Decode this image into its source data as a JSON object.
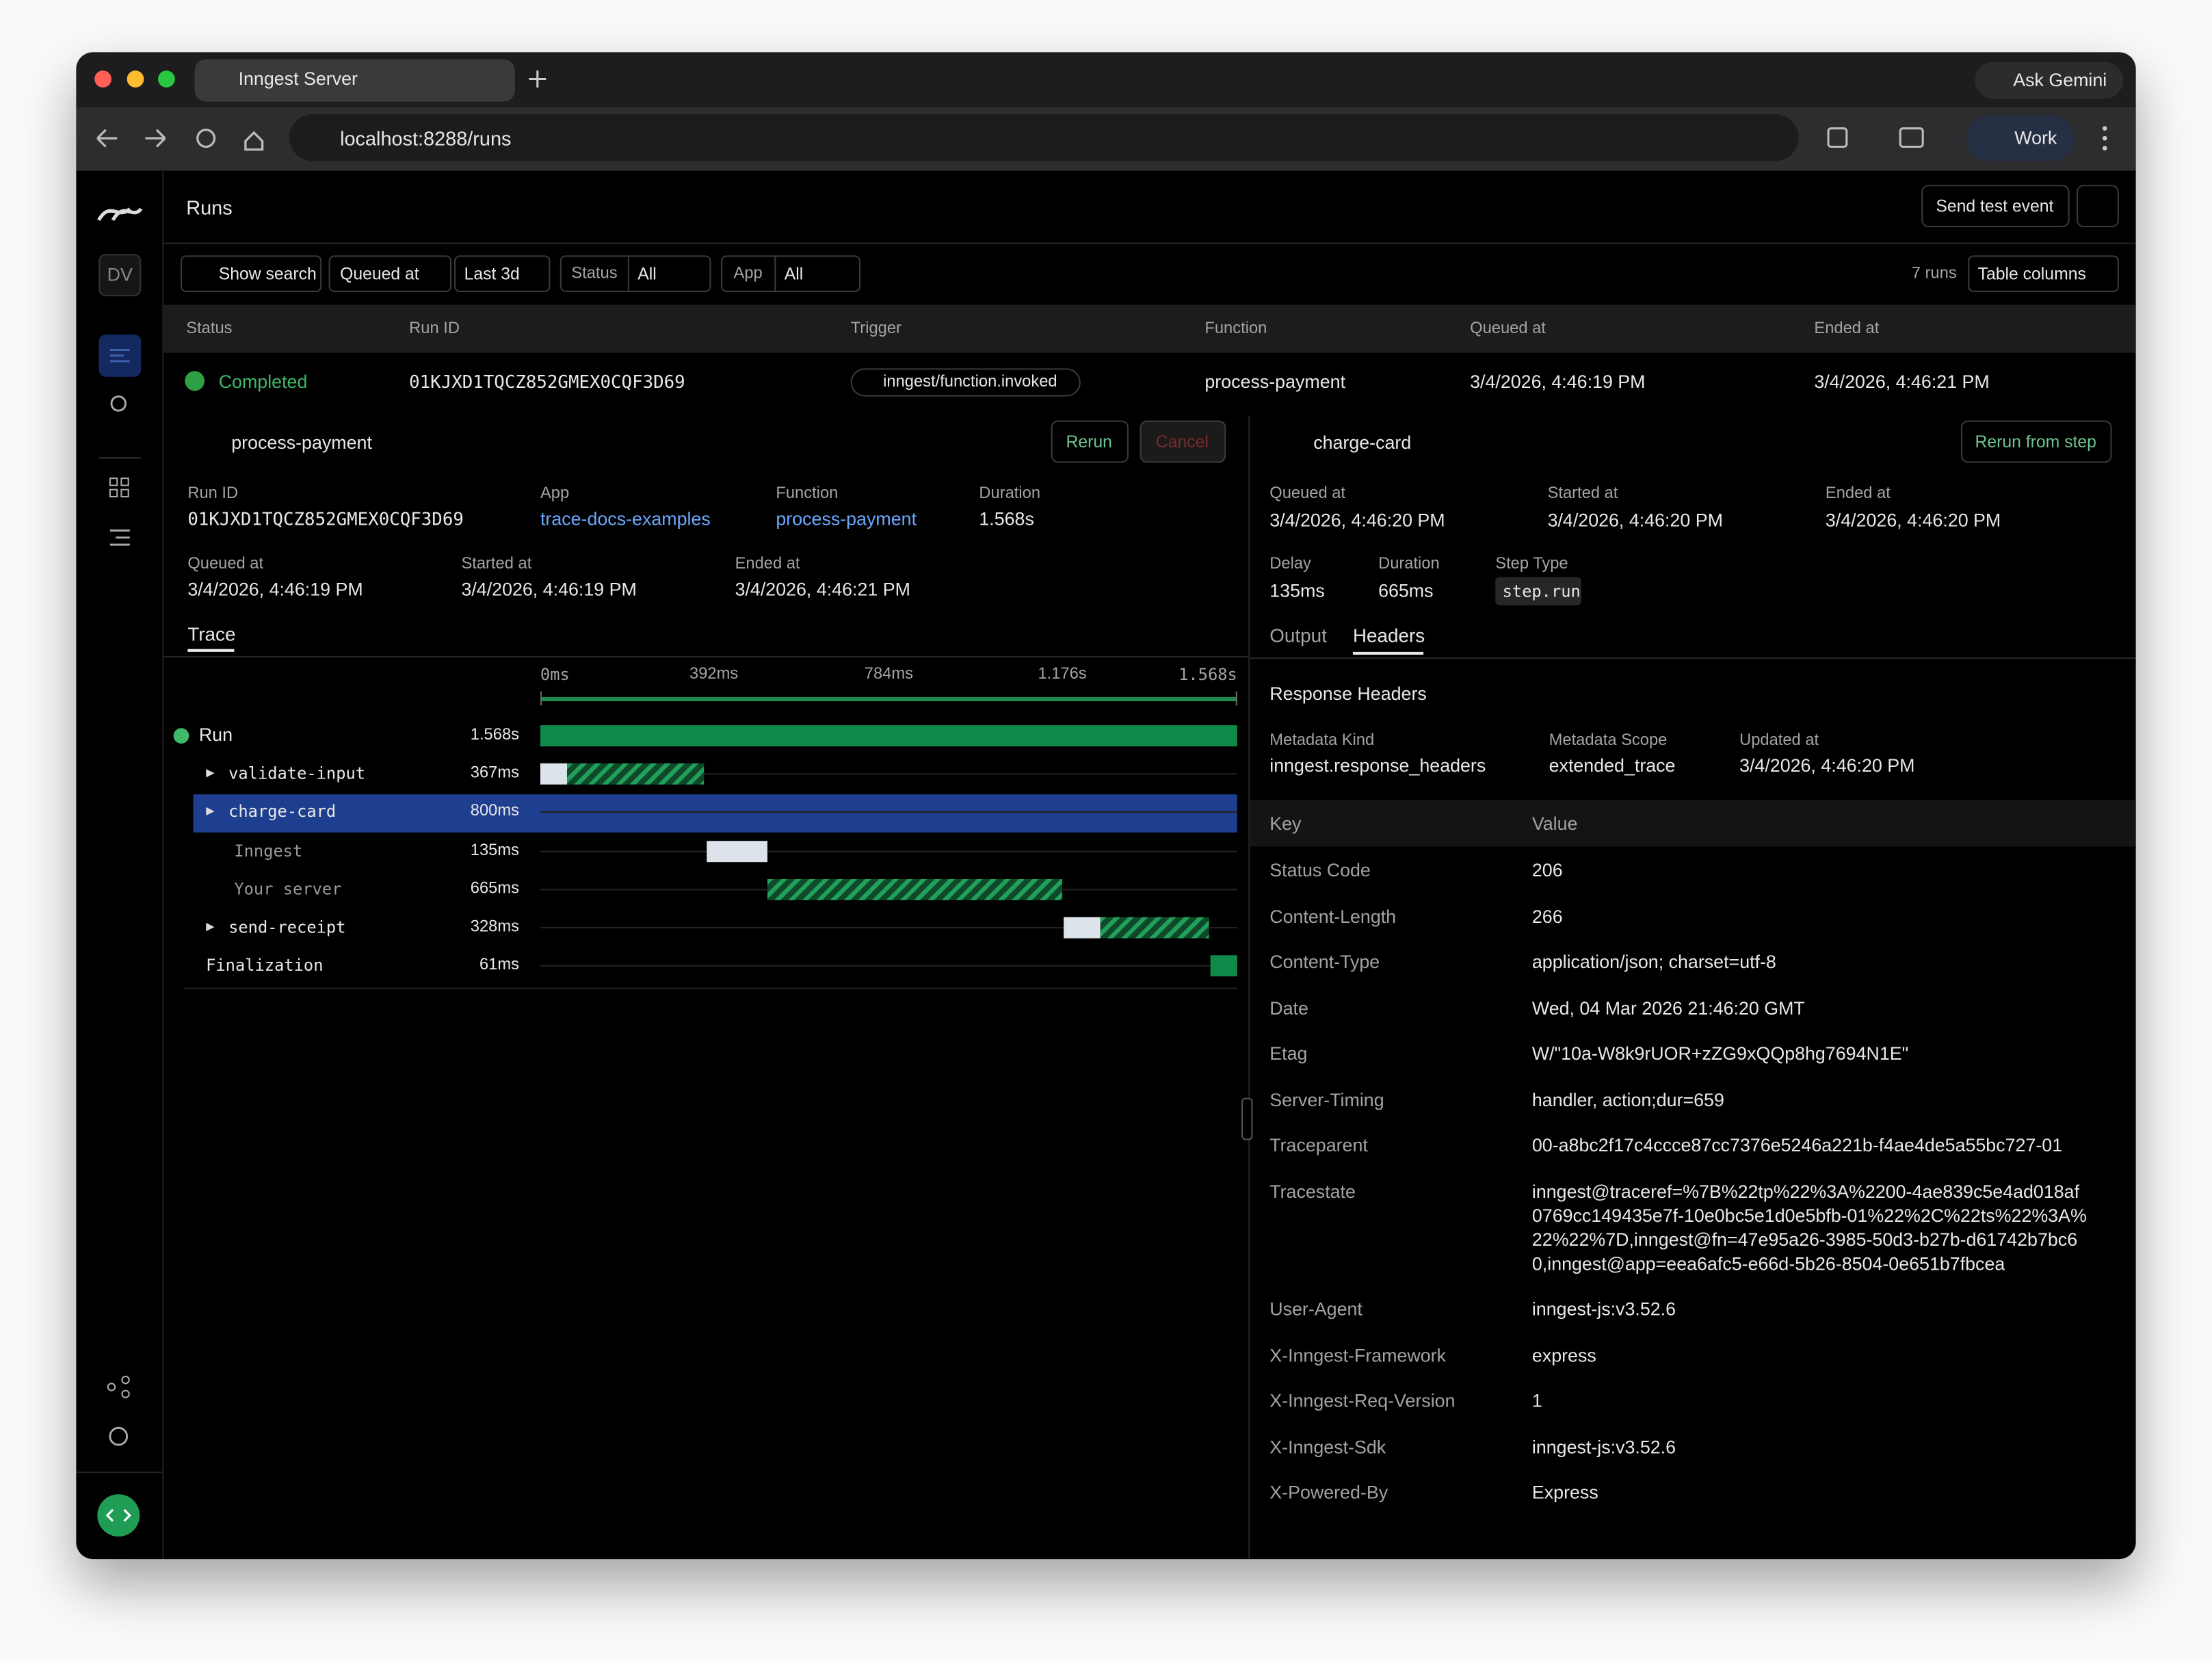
{
  "browser": {
    "tab_title": "Inngest Server",
    "url": "localhost:8288/runs",
    "ask": "Ask Gemini",
    "profile": "Work"
  },
  "sidebar": {
    "avatar": "DV"
  },
  "header": {
    "title": "Runs",
    "send_test": "Send test event"
  },
  "filters": {
    "show_search": "Show search",
    "queued_at": "Queued at",
    "range": "Last 3d",
    "status_label": "Status",
    "status_value": "All",
    "app_label": "App",
    "app_value": "All",
    "count": "7 runs",
    "table_columns": "Table columns"
  },
  "table": {
    "columns": [
      "Status",
      "Run ID",
      "Trigger",
      "Function",
      "Queued at",
      "Ended at"
    ],
    "row": [
      "Completed",
      "01KJXD1TQCZ852GMEX0CQF3D69",
      "inngest/function.invoked",
      "process-payment",
      "3/4/2026, 4:46:19 PM",
      "3/4/2026, 4:46:21 PM"
    ]
  },
  "run": {
    "name": "process-payment",
    "rerun": "Rerun",
    "cancel": "Cancel",
    "fields": [
      {
        "label": "Run ID",
        "value": "01KJXD1TQCZ852GMEX0CQF3D69"
      },
      {
        "label": "App",
        "value": "trace-docs-examples"
      },
      {
        "label": "Function",
        "value": "process-payment"
      },
      {
        "label": "Duration",
        "value": "1.568s"
      },
      {
        "label": "Queued at",
        "value": "3/4/2026, 4:46:19 PM"
      },
      {
        "label": "Started at",
        "value": "3/4/2026, 4:46:19 PM"
      },
      {
        "label": "Ended at",
        "value": "3/4/2026, 4:46:21 PM"
      }
    ],
    "tab": "Trace"
  },
  "trace": {
    "ticks": [
      "0ms",
      "392ms",
      "784ms",
      "1.176s",
      "1.568s"
    ],
    "spans": [
      {
        "name": "Run",
        "duration": "1.568s"
      },
      {
        "name": "validate-input",
        "duration": "367ms"
      },
      {
        "name": "charge-card",
        "duration": "800ms"
      },
      {
        "name": "Inngest",
        "duration": "135ms"
      },
      {
        "name": "Your server",
        "duration": "665ms"
      },
      {
        "name": "send-receipt",
        "duration": "328ms"
      },
      {
        "name": "Finalization",
        "duration": "61ms"
      }
    ]
  },
  "step": {
    "name": "charge-card",
    "rerun": "Rerun from step",
    "fields": [
      {
        "label": "Queued at",
        "value": "3/4/2026, 4:46:20 PM"
      },
      {
        "label": "Started at",
        "value": "3/4/2026, 4:46:20 PM"
      },
      {
        "label": "Ended at",
        "value": "3/4/2026, 4:46:20 PM"
      },
      {
        "label": "Delay",
        "value": "135ms"
      },
      {
        "label": "Duration",
        "value": "665ms"
      },
      {
        "label": "Step Type",
        "value": "step.run"
      }
    ],
    "tabs": [
      "Output",
      "Headers"
    ],
    "section": "Response Headers",
    "meta": [
      {
        "label": "Metadata Kind",
        "value": "inngest.response_headers"
      },
      {
        "label": "Metadata Scope",
        "value": "extended_trace"
      },
      {
        "label": "Updated at",
        "value": "3/4/2026, 4:46:20 PM"
      }
    ],
    "header_columns": [
      "Key",
      "Value"
    ],
    "headers": [
      [
        "Status Code",
        "206"
      ],
      [
        "Content-Length",
        "266"
      ],
      [
        "Content-Type",
        "application/json; charset=utf-8"
      ],
      [
        "Date",
        "Wed, 04 Mar 2026 21:46:20 GMT"
      ],
      [
        "Etag",
        "W/\"10a-W8k9rUOR+zZG9xQQp8hg7694N1E\""
      ],
      [
        "Server-Timing",
        "handler, action;dur=659"
      ],
      [
        "Traceparent",
        "00-a8bc2f17c4ccce87cc7376e5246a221b-f4ae4de5a55bc727-01"
      ],
      [
        "Tracestate",
        "inngest@traceref=%7B%22tp%22%3A%2200-4ae839c5e4ad018af0769cc149435e7f-10e0bc5e1d0e5bfb-01%22%2C%22ts%22%3A%22%22%7D,inngest@fn=47e95a26-3985-50d3-b27b-d61742b7bc60,inngest@app=eea6afc5-e66d-5b26-8504-0e651b7fbcea"
      ],
      [
        "User-Agent",
        "inngest-js:v3.52.6"
      ],
      [
        "X-Inngest-Framework",
        "express"
      ],
      [
        "X-Inngest-Req-Version",
        "1"
      ],
      [
        "X-Inngest-Sdk",
        "inngest-js:v3.52.6"
      ],
      [
        "X-Powered-By",
        "Express"
      ]
    ]
  }
}
